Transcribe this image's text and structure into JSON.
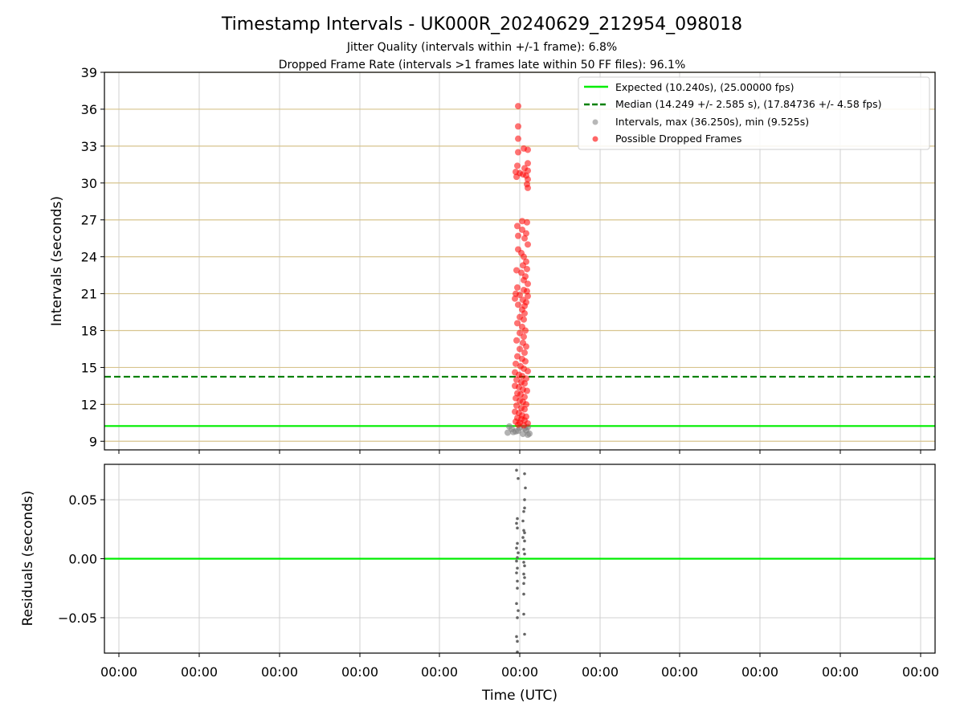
{
  "figure": {
    "title": "Timestamp Intervals - UK000R_20240629_212954_098018",
    "subtitle_1": "Jitter Quality (intervals within +/-1 frame): 6.8%",
    "subtitle_2": "Dropped Frame Rate (intervals >1 frames late within 50 FF files): 96.1%"
  },
  "chart_data": [
    {
      "type": "scatter",
      "ylabel": "Intervals (seconds)",
      "ylim": [
        8.3,
        39
      ],
      "yticks": [
        "9",
        "12",
        "15",
        "18",
        "21",
        "24",
        "27",
        "30",
        "33",
        "36",
        "39"
      ],
      "grid": true,
      "legend_position": "top-right",
      "reference_lines": [
        {
          "name": "Expected (10.240s), (25.00000 fps)",
          "y": 10.24,
          "style": "solid",
          "color": "#00ee00"
        },
        {
          "name": "Median (14.249 +/- 2.585 s), (17.84736 +/- 4.58 fps)",
          "y": 14.249,
          "style": "dashed",
          "color": "#008000"
        }
      ],
      "series": [
        {
          "name": "Intervals, max (36.250s), min (9.525s)",
          "color": "#808080"
        },
        {
          "name": "Possible Dropped Frames",
          "color": "#ff0000"
        }
      ],
      "grey_points": [
        [
          -0.15,
          9.7
        ],
        [
          -0.05,
          9.8
        ],
        [
          0.04,
          9.6
        ],
        [
          0.1,
          9.53
        ],
        [
          0.12,
          9.62
        ],
        [
          -0.1,
          10.0
        ],
        [
          0.08,
          9.9
        ],
        [
          0.0,
          10.1
        ],
        [
          -0.13,
          10.2
        ],
        [
          0.1,
          10.15
        ],
        [
          -0.02,
          9.85
        ],
        [
          0.06,
          10.05
        ],
        [
          -0.08,
          9.75
        ]
      ],
      "red_points": [
        [
          -0.02,
          36.25
        ],
        [
          -0.02,
          34.6
        ],
        [
          -0.02,
          33.6
        ],
        [
          0.05,
          32.8
        ],
        [
          0.1,
          32.7
        ],
        [
          -0.02,
          32.5
        ],
        [
          0.1,
          31.6
        ],
        [
          -0.03,
          31.4
        ],
        [
          0.06,
          31.2
        ],
        [
          0.1,
          31.0
        ],
        [
          -0.05,
          30.9
        ],
        [
          0.0,
          30.8
        ],
        [
          0.08,
          30.6
        ],
        [
          -0.04,
          30.5
        ],
        [
          0.04,
          30.7
        ],
        [
          0.1,
          30.3
        ],
        [
          0.09,
          29.9
        ],
        [
          0.1,
          29.6
        ],
        [
          0.03,
          26.9
        ],
        [
          0.09,
          26.8
        ],
        [
          -0.03,
          26.5
        ],
        [
          0.03,
          26.2
        ],
        [
          0.08,
          25.9
        ],
        [
          -0.02,
          25.7
        ],
        [
          0.06,
          25.5
        ],
        [
          0.1,
          25.0
        ],
        [
          -0.02,
          24.6
        ],
        [
          0.02,
          24.3
        ],
        [
          0.05,
          24.0
        ],
        [
          0.08,
          23.6
        ],
        [
          0.04,
          23.3
        ],
        [
          0.09,
          23.0
        ],
        [
          -0.04,
          22.9
        ],
        [
          0.02,
          22.7
        ],
        [
          0.07,
          22.4
        ],
        [
          0.05,
          22.1
        ],
        [
          0.1,
          21.8
        ],
        [
          -0.03,
          21.5
        ],
        [
          0.05,
          21.3
        ],
        [
          0.09,
          21.2
        ],
        [
          -0.05,
          21.0
        ],
        [
          0.0,
          20.9
        ],
        [
          0.1,
          20.8
        ],
        [
          -0.06,
          20.6
        ],
        [
          0.04,
          20.5
        ],
        [
          0.08,
          20.3
        ],
        [
          -0.02,
          20.1
        ],
        [
          0.06,
          20.0
        ],
        [
          0.03,
          19.7
        ],
        [
          0.06,
          19.4
        ],
        [
          0.0,
          19.1
        ],
        [
          0.05,
          18.9
        ],
        [
          -0.03,
          18.6
        ],
        [
          0.03,
          18.3
        ],
        [
          0.07,
          18.0
        ],
        [
          0.0,
          17.8
        ],
        [
          0.05,
          17.5
        ],
        [
          -0.04,
          17.2
        ],
        [
          0.04,
          17.0
        ],
        [
          0.08,
          16.7
        ],
        [
          0.0,
          16.5
        ],
        [
          0.06,
          16.2
        ],
        [
          -0.03,
          15.9
        ],
        [
          0.03,
          15.7
        ],
        [
          0.07,
          15.5
        ],
        [
          -0.05,
          15.3
        ],
        [
          0.01,
          15.1
        ],
        [
          0.05,
          14.9
        ],
        [
          0.1,
          14.7
        ],
        [
          -0.06,
          14.6
        ],
        [
          -0.01,
          14.4
        ],
        [
          0.03,
          14.3
        ],
        [
          0.08,
          14.1
        ],
        [
          -0.04,
          14.0
        ],
        [
          0.02,
          13.8
        ],
        [
          0.06,
          13.7
        ],
        [
          -0.06,
          13.5
        ],
        [
          -0.01,
          13.4
        ],
        [
          0.04,
          13.2
        ],
        [
          0.09,
          13.1
        ],
        [
          -0.03,
          12.9
        ],
        [
          0.01,
          12.8
        ],
        [
          0.06,
          12.6
        ],
        [
          -0.05,
          12.5
        ],
        [
          0.0,
          12.3
        ],
        [
          0.04,
          12.2
        ],
        [
          0.08,
          12.0
        ],
        [
          -0.04,
          11.9
        ],
        [
          0.02,
          11.7
        ],
        [
          0.06,
          11.6
        ],
        [
          -0.06,
          11.4
        ],
        [
          -0.01,
          11.3
        ],
        [
          0.03,
          11.1
        ],
        [
          0.08,
          11.0
        ],
        [
          -0.03,
          10.9
        ],
        [
          0.02,
          10.8
        ],
        [
          0.06,
          10.7
        ],
        [
          -0.05,
          10.6
        ],
        [
          0.0,
          10.5
        ],
        [
          0.1,
          10.45
        ],
        [
          -0.02,
          10.35
        ],
        [
          0.05,
          10.3
        ]
      ]
    },
    {
      "type": "scatter",
      "xlabel": "Time (UTC)",
      "ylabel": "Residuals (seconds)",
      "ylim": [
        -0.08,
        0.08
      ],
      "yticks": [
        "−0.05",
        "0.00",
        "0.05"
      ],
      "xticks": [
        "00:00",
        "00:00",
        "00:00",
        "00:00",
        "00:00",
        "00:00",
        "00:00",
        "00:00",
        "00:00",
        "00:00",
        "00:00"
      ],
      "grid": true,
      "reference_lines": [
        {
          "y": 0.0,
          "style": "solid",
          "color": "#00ee00"
        }
      ],
      "points": [
        [
          -0.04,
          0.075
        ],
        [
          -0.02,
          0.068
        ],
        [
          0.06,
          0.072
        ],
        [
          0.07,
          0.06
        ],
        [
          0.06,
          0.05
        ],
        [
          0.05,
          0.04
        ],
        [
          0.06,
          0.043
        ],
        [
          -0.03,
          0.034
        ],
        [
          -0.04,
          0.03
        ],
        [
          0.04,
          0.032
        ],
        [
          -0.03,
          0.026
        ],
        [
          0.05,
          0.024
        ],
        [
          0.06,
          0.022
        ],
        [
          0.04,
          0.018
        ],
        [
          0.06,
          0.015
        ],
        [
          -0.03,
          0.013
        ],
        [
          -0.04,
          0.009
        ],
        [
          0.05,
          0.008
        ],
        [
          -0.02,
          0.005
        ],
        [
          0.06,
          0.004
        ],
        [
          -0.03,
          0.001
        ],
        [
          -0.04,
          -0.002
        ],
        [
          0.05,
          -0.003
        ],
        [
          0.06,
          -0.006
        ],
        [
          -0.03,
          -0.008
        ],
        [
          -0.04,
          -0.012
        ],
        [
          0.05,
          -0.013
        ],
        [
          0.06,
          -0.016
        ],
        [
          -0.03,
          -0.019
        ],
        [
          0.05,
          -0.021
        ],
        [
          -0.03,
          -0.025
        ],
        [
          0.05,
          -0.03
        ],
        [
          -0.04,
          -0.038
        ],
        [
          -0.03,
          -0.05
        ],
        [
          -0.02,
          -0.044
        ],
        [
          0.05,
          -0.047
        ],
        [
          -0.04,
          -0.066
        ],
        [
          -0.03,
          -0.07
        ],
        [
          0.06,
          -0.064
        ],
        [
          -0.03,
          -0.079
        ]
      ]
    }
  ],
  "legend_swatch_colors": {
    "expected": "#00ee00",
    "median": "#008000",
    "intervals": "#999999",
    "dropped": "#ff5555"
  }
}
